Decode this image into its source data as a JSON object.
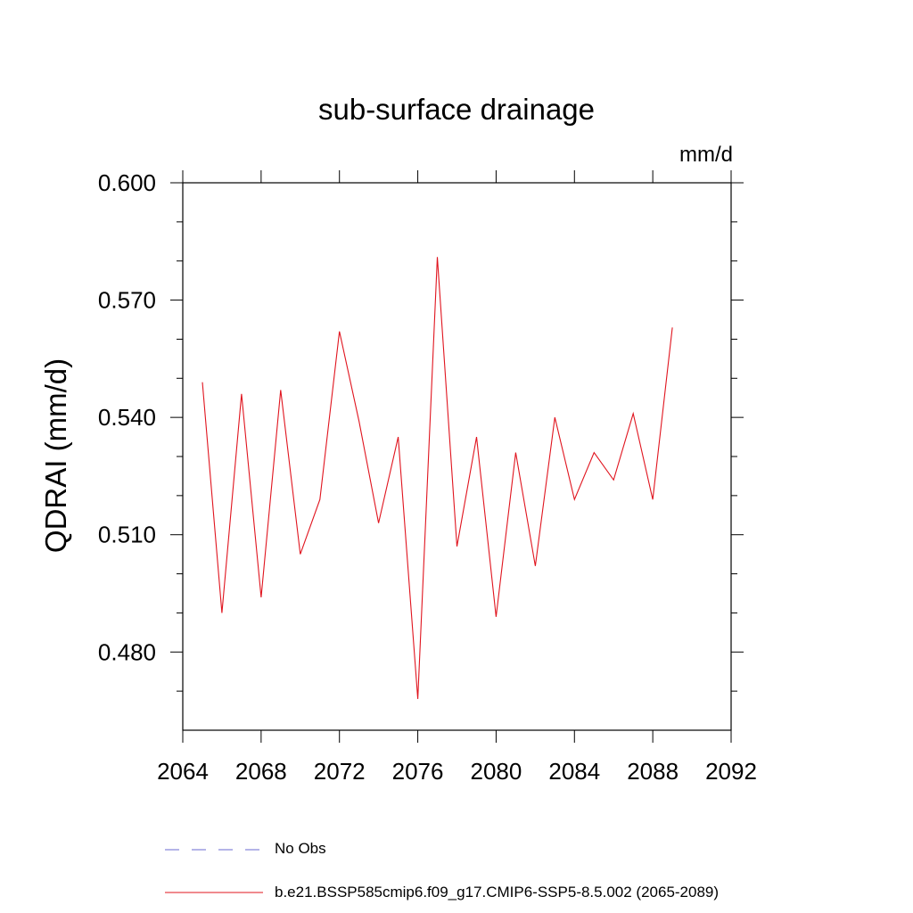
{
  "chart_data": {
    "type": "line",
    "title": "sub-surface drainage",
    "units_label": "mm/d",
    "ylabel": "QDRAI  (mm/d)",
    "xlabel": "",
    "xlim": [
      2064,
      2092
    ],
    "ylim": [
      0.46,
      0.6
    ],
    "x_ticks": [
      2064,
      2068,
      2072,
      2076,
      2080,
      2084,
      2088,
      2092
    ],
    "x_tick_labels": [
      "2064",
      "2068",
      "2072",
      "2076",
      "2080",
      "2084",
      "2088",
      "2092"
    ],
    "y_ticks": [
      0.48,
      0.51,
      0.54,
      0.57,
      0.6
    ],
    "y_tick_labels": [
      "0.480",
      "0.510",
      "0.540",
      "0.570",
      "0.600"
    ],
    "y_minor_ticks": [
      0.47,
      0.49,
      0.5,
      0.52,
      0.53,
      0.55,
      0.56,
      0.58,
      0.59
    ],
    "grid": false,
    "series": [
      {
        "name": "b.e21.BSSP585cmip6.f09_g17.CMIP6-SSP5-8.5.002 (2065-2089)",
        "color": "#e0141e",
        "x": [
          2065,
          2066,
          2067,
          2068,
          2069,
          2070,
          2071,
          2072,
          2073,
          2074,
          2075,
          2076,
          2077,
          2078,
          2079,
          2080,
          2081,
          2082,
          2083,
          2084,
          2085,
          2086,
          2087,
          2088,
          2089
        ],
        "values": [
          0.549,
          0.49,
          0.546,
          0.494,
          0.547,
          0.505,
          0.519,
          0.562,
          0.539,
          0.513,
          0.535,
          0.468,
          0.581,
          0.507,
          0.535,
          0.489,
          0.531,
          0.502,
          0.54,
          0.519,
          0.531,
          0.524,
          0.541,
          0.519,
          0.563
        ]
      }
    ],
    "legend": [
      {
        "label": "No Obs",
        "style": "dashed",
        "color": "#6a6ad0"
      },
      {
        "label": "b.e21.BSSP585cmip6.f09_g17.CMIP6-SSP5-8.5.002 (2065-2089)",
        "style": "solid",
        "color": "#e0141e"
      }
    ]
  }
}
